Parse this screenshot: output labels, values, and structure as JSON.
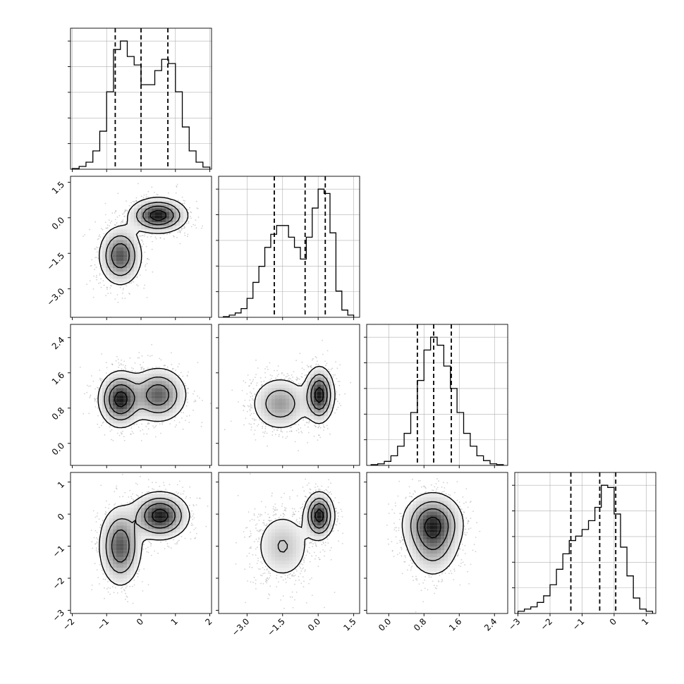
{
  "chart_data": {
    "type": "corner",
    "title": "",
    "grid": true,
    "parameters": [
      {
        "range": [
          -2.05,
          2.05
        ],
        "ticks": [
          -2,
          -1,
          0,
          1,
          2
        ],
        "tick_labels": [
          "−2",
          "−1",
          "0",
          "1",
          "2"
        ],
        "quantiles": [
          -0.75,
          0.0,
          0.78
        ]
      },
      {
        "range": [
          -4.2,
          1.75
        ],
        "ticks": [
          -3.0,
          -1.5,
          0.0,
          1.5
        ],
        "tick_labels": [
          "−3.0",
          "−1.5",
          "0.0",
          "1.5"
        ],
        "quantiles": [
          -1.85,
          -0.55,
          0.3
        ]
      },
      {
        "range": [
          -0.5,
          2.7
        ],
        "ticks": [
          0.0,
          0.8,
          1.6,
          2.4
        ],
        "tick_labels": [
          "0.0",
          "0.8",
          "1.6",
          "2.4"
        ],
        "quantiles": [
          0.65,
          1.02,
          1.42
        ]
      },
      {
        "range": [
          -3.1,
          1.3
        ],
        "ticks": [
          -3,
          -2,
          -1,
          0,
          1
        ],
        "tick_labels": [
          "−3",
          "−2",
          "−1",
          "0",
          "1"
        ],
        "quantiles": [
          -1.35,
          -0.45,
          0.05
        ]
      }
    ],
    "histograms": [
      {
        "param": 0,
        "bin_edges": [
          -2.0,
          -1.8,
          -1.6,
          -1.4,
          -1.2,
          -1.0,
          -0.8,
          -0.6,
          -0.4,
          -0.2,
          0.0,
          0.2,
          0.4,
          0.6,
          0.8,
          1.0,
          1.2,
          1.4,
          1.6,
          1.8,
          2.0
        ],
        "counts": [
          0.005,
          0.02,
          0.05,
          0.13,
          0.27,
          0.55,
          0.85,
          0.91,
          0.8,
          0.74,
          0.6,
          0.6,
          0.7,
          0.78,
          0.75,
          0.55,
          0.3,
          0.13,
          0.05,
          0.015
        ]
      },
      {
        "param": 1,
        "bin_edges": [
          -4.0,
          -3.75,
          -3.5,
          -3.25,
          -3.0,
          -2.75,
          -2.5,
          -2.25,
          -2.0,
          -1.75,
          -1.5,
          -1.25,
          -1.0,
          -0.75,
          -0.5,
          -0.25,
          0.0,
          0.25,
          0.5,
          0.75,
          1.0,
          1.25,
          1.5
        ],
        "counts": [
          0.005,
          0.015,
          0.03,
          0.06,
          0.13,
          0.24,
          0.35,
          0.48,
          0.57,
          0.63,
          0.63,
          0.55,
          0.48,
          0.4,
          0.55,
          0.75,
          0.88,
          0.85,
          0.58,
          0.18,
          0.05,
          0.015
        ]
      },
      {
        "param": 2,
        "bin_edges": [
          -0.4,
          -0.25,
          -0.1,
          0.05,
          0.2,
          0.35,
          0.5,
          0.65,
          0.8,
          0.95,
          1.1,
          1.25,
          1.4,
          1.55,
          1.7,
          1.85,
          2.0,
          2.15,
          2.3,
          2.45,
          2.6
        ],
        "counts": [
          0.005,
          0.01,
          0.025,
          0.06,
          0.12,
          0.2,
          0.33,
          0.53,
          0.72,
          0.8,
          0.75,
          0.62,
          0.48,
          0.33,
          0.2,
          0.12,
          0.06,
          0.03,
          0.01,
          0.005
        ]
      },
      {
        "param": 3,
        "bin_edges": [
          -3.0,
          -2.8,
          -2.6,
          -2.4,
          -2.2,
          -2.0,
          -1.8,
          -1.6,
          -1.4,
          -1.2,
          -1.0,
          -0.8,
          -0.6,
          -0.4,
          -0.2,
          0.0,
          0.2,
          0.4,
          0.6,
          0.8,
          1.0,
          1.2
        ],
        "counts": [
          0.01,
          0.02,
          0.03,
          0.05,
          0.08,
          0.13,
          0.2,
          0.27,
          0.33,
          0.35,
          0.38,
          0.42,
          0.48,
          0.58,
          0.57,
          0.45,
          0.3,
          0.17,
          0.07,
          0.02,
          0.01
        ]
      }
    ],
    "pairs": [
      {
        "x_param": 0,
        "y_param": 1,
        "clusters": [
          {
            "mean": [
              -0.6,
              -1.6
            ],
            "sd": [
              0.3,
              0.6
            ],
            "weight": 1.0
          },
          {
            "mean": [
              0.5,
              0.1
            ],
            "sd": [
              0.4,
              0.35
            ],
            "weight": 1.0
          }
        ]
      },
      {
        "x_param": 0,
        "y_param": 2,
        "clusters": [
          {
            "mean": [
              -0.6,
              1.0
            ],
            "sd": [
              0.3,
              0.3
            ],
            "weight": 1.0
          },
          {
            "mean": [
              0.5,
              1.1
            ],
            "sd": [
              0.4,
              0.3
            ],
            "weight": 1.0
          }
        ]
      },
      {
        "x_param": 1,
        "y_param": 2,
        "clusters": [
          {
            "mean": [
              -1.6,
              0.9
            ],
            "sd": [
              0.6,
              0.3
            ],
            "weight": 1.0
          },
          {
            "mean": [
              0.05,
              1.1
            ],
            "sd": [
              0.3,
              0.3
            ],
            "weight": 1.0
          }
        ]
      },
      {
        "x_param": 0,
        "y_param": 3,
        "clusters": [
          {
            "mean": [
              -0.6,
              -1.0
            ],
            "sd": [
              0.3,
              0.6
            ],
            "weight": 1.0
          },
          {
            "mean": [
              0.55,
              -0.05
            ],
            "sd": [
              0.4,
              0.35
            ],
            "weight": 1.0
          }
        ]
      },
      {
        "x_param": 1,
        "y_param": 3,
        "clusters": [
          {
            "mean": [
              -1.5,
              -1.0
            ],
            "sd": [
              0.6,
              0.55
            ],
            "weight": 1.0
          },
          {
            "mean": [
              0.05,
              -0.05
            ],
            "sd": [
              0.3,
              0.35
            ],
            "weight": 1.0
          }
        ]
      },
      {
        "x_param": 2,
        "y_param": 3,
        "clusters": [
          {
            "mean": [
              1.0,
              -0.25
            ],
            "sd": [
              0.33,
              0.45
            ],
            "weight": 1.0
          },
          {
            "mean": [
              1.0,
              -0.9
            ],
            "sd": [
              0.3,
              0.55
            ],
            "weight": 0.7
          }
        ]
      }
    ]
  },
  "colors": {
    "line": "#000000",
    "grid": "#b0b0b0",
    "scatter": "#9a9a9a",
    "density": "#000000"
  }
}
